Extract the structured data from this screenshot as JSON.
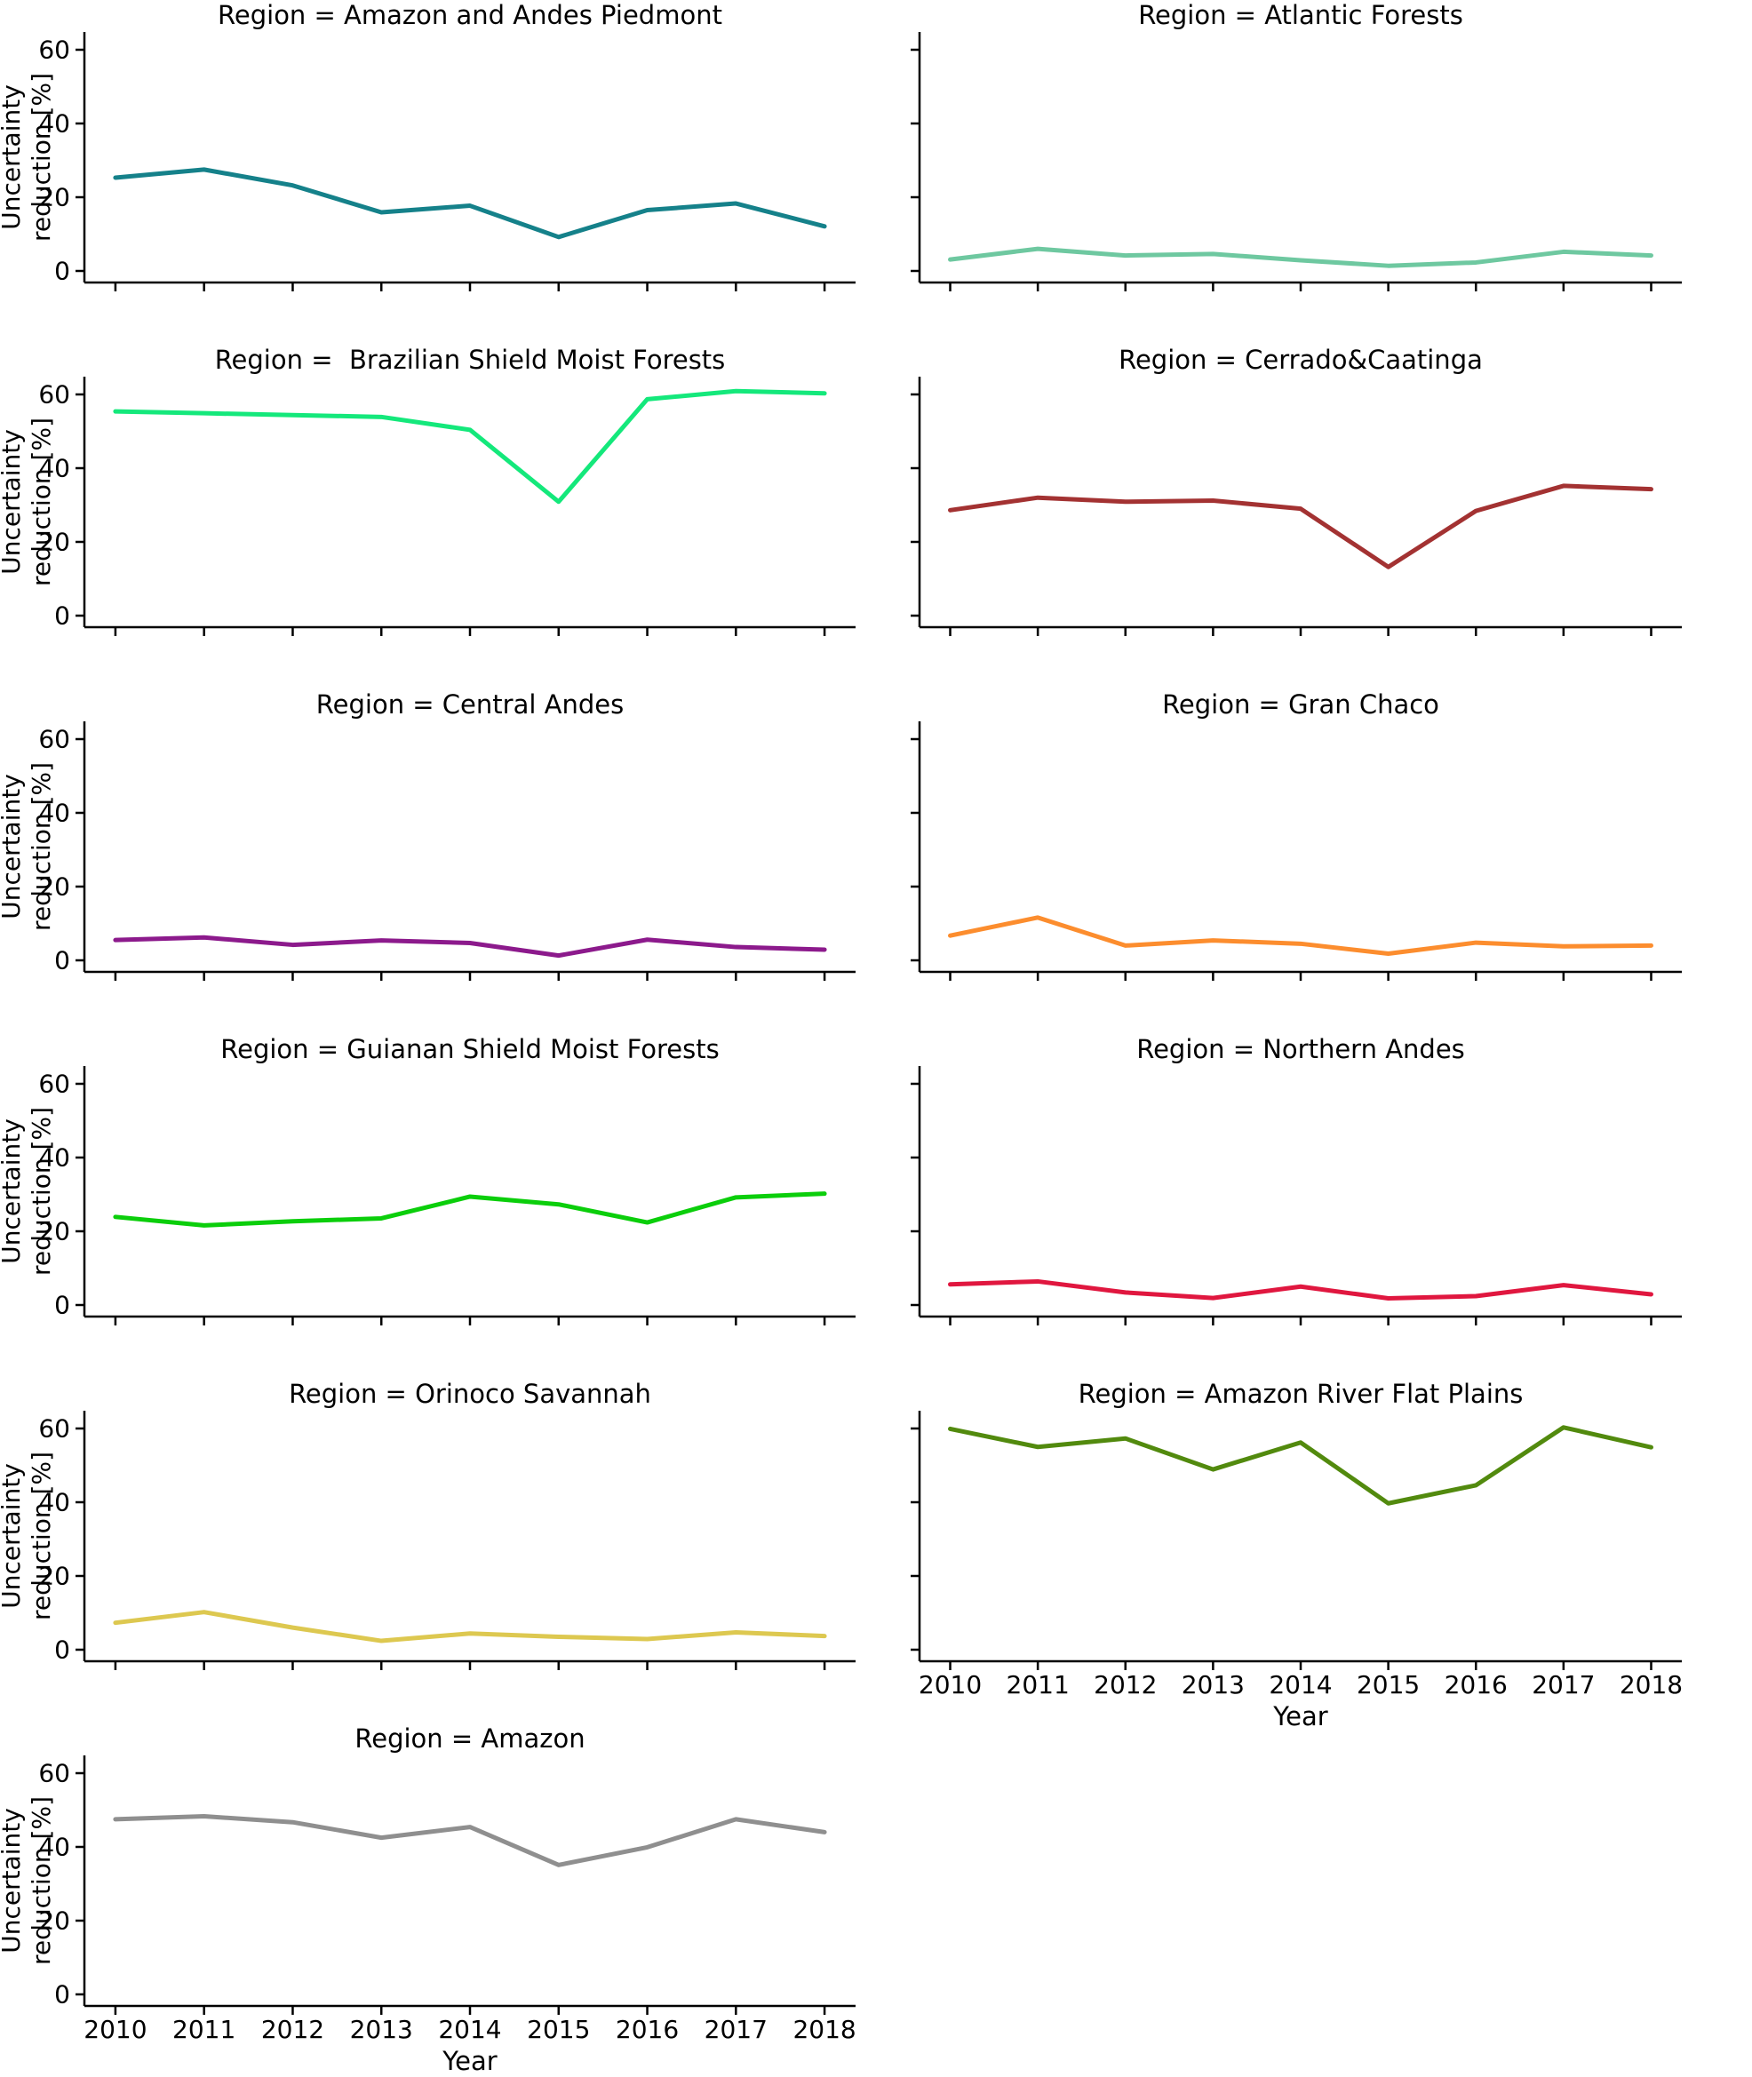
{
  "figure": {
    "xlabel": "Year",
    "ylabel_lines": [
      "Uncertainty",
      "reduction [%]"
    ],
    "yticks": [
      0,
      20,
      40,
      60
    ],
    "xticks": [
      2010,
      2011,
      2012,
      2013,
      2014,
      2015,
      2016,
      2017,
      2018
    ],
    "ylim": [
      -3,
      65
    ],
    "xlim": [
      2009.65,
      2018.35
    ],
    "grid": false,
    "legend": "none",
    "axis_color": "#000000",
    "background": "#ffffff"
  },
  "chart_data": [
    {
      "type": "line",
      "region": "Amazon and Andes Piedmont",
      "title": "Region = Amazon and Andes Piedmont",
      "color": "#15818a",
      "column": "left",
      "x": [
        2010,
        2011,
        2012,
        2013,
        2014,
        2015,
        2016,
        2017,
        2018
      ],
      "values": [
        25.3,
        27.5,
        23.2,
        15.9,
        17.7,
        9.2,
        16.5,
        18.3,
        12.1
      ],
      "show_ytick_labels": true,
      "show_ylabel": true,
      "show_xtick_labels": false,
      "show_xlabel": false
    },
    {
      "type": "line",
      "region": "Atlantic Forests",
      "title": "Region = Atlantic Forests",
      "color": "#6ec8a0",
      "column": "right",
      "x": [
        2010,
        2011,
        2012,
        2013,
        2014,
        2015,
        2016,
        2017,
        2018
      ],
      "values": [
        3.1,
        6.0,
        4.2,
        4.6,
        2.9,
        1.4,
        2.3,
        5.2,
        4.2
      ],
      "show_ytick_labels": false,
      "show_ylabel": false,
      "show_xtick_labels": false,
      "show_xlabel": false
    },
    {
      "type": "line",
      "region": "Brazilian Shield Moist Forests",
      "title": "Region =  Brazilian Shield Moist Forests",
      "color": "#14e87b",
      "column": "left",
      "x": [
        2010,
        2011,
        2012,
        2013,
        2014,
        2015,
        2016,
        2017,
        2018
      ],
      "values": [
        55.4,
        54.9,
        54.4,
        53.9,
        50.4,
        30.9,
        58.7,
        60.9,
        60.3
      ],
      "show_ytick_labels": true,
      "show_ylabel": true,
      "show_xtick_labels": false,
      "show_xlabel": false
    },
    {
      "type": "line",
      "region": "Cerrado&Caatinga",
      "title": "Region = Cerrado&Caatinga",
      "color": "#a33232",
      "column": "right",
      "x": [
        2010,
        2011,
        2012,
        2013,
        2014,
        2015,
        2016,
        2017,
        2018
      ],
      "values": [
        28.6,
        32.0,
        30.9,
        31.2,
        29.0,
        13.2,
        28.4,
        35.2,
        34.3
      ],
      "show_ytick_labels": false,
      "show_ylabel": false,
      "show_xtick_labels": false,
      "show_xlabel": false
    },
    {
      "type": "line",
      "region": "Central Andes",
      "title": "Region = Central Andes",
      "color": "#8c1a8c",
      "column": "left",
      "x": [
        2010,
        2011,
        2012,
        2013,
        2014,
        2015,
        2016,
        2017,
        2018
      ],
      "values": [
        5.5,
        6.2,
        4.2,
        5.4,
        4.7,
        1.3,
        5.6,
        3.6,
        2.9
      ],
      "show_ytick_labels": true,
      "show_ylabel": true,
      "show_xtick_labels": false,
      "show_xlabel": false
    },
    {
      "type": "line",
      "region": "Gran Chaco",
      "title": "Region = Gran Chaco",
      "color": "#fc8d2e",
      "column": "right",
      "x": [
        2010,
        2011,
        2012,
        2013,
        2014,
        2015,
        2016,
        2017,
        2018
      ],
      "values": [
        6.7,
        11.6,
        4.0,
        5.4,
        4.5,
        1.8,
        4.8,
        3.8,
        4.0
      ],
      "show_ytick_labels": false,
      "show_ylabel": false,
      "show_xtick_labels": false,
      "show_xlabel": false
    },
    {
      "type": "line",
      "region": "Guianan Shield Moist Forests",
      "title": "Region = Guianan Shield Moist Forests",
      "color": "#0bce0b",
      "column": "left",
      "x": [
        2010,
        2011,
        2012,
        2013,
        2014,
        2015,
        2016,
        2017,
        2018
      ],
      "values": [
        23.9,
        21.6,
        22.7,
        23.5,
        29.4,
        27.3,
        22.4,
        29.2,
        30.2
      ],
      "show_ytick_labels": true,
      "show_ylabel": true,
      "show_xtick_labels": false,
      "show_xlabel": false
    },
    {
      "type": "line",
      "region": "Northern Andes",
      "title": "Region = Northern Andes",
      "color": "#e0173f",
      "column": "right",
      "x": [
        2010,
        2011,
        2012,
        2013,
        2014,
        2015,
        2016,
        2017,
        2018
      ],
      "values": [
        5.6,
        6.4,
        3.4,
        1.9,
        5.0,
        1.8,
        2.4,
        5.4,
        2.9
      ],
      "show_ytick_labels": false,
      "show_ylabel": false,
      "show_xtick_labels": false,
      "show_xlabel": false
    },
    {
      "type": "line",
      "region": "Orinoco Savannah",
      "title": "Region = Orinoco Savannah",
      "color": "#ddc850",
      "column": "left",
      "x": [
        2010,
        2011,
        2012,
        2013,
        2014,
        2015,
        2016,
        2017,
        2018
      ],
      "values": [
        7.3,
        10.2,
        6.0,
        2.4,
        4.4,
        3.5,
        2.9,
        4.7,
        3.7
      ],
      "show_ytick_labels": true,
      "show_ylabel": true,
      "show_xtick_labels": false,
      "show_xlabel": false
    },
    {
      "type": "line",
      "region": "Amazon River Flat Plains",
      "title": "Region = Amazon River Flat Plains",
      "color": "#528a0e",
      "column": "right",
      "x": [
        2010,
        2011,
        2012,
        2013,
        2014,
        2015,
        2016,
        2017,
        2018
      ],
      "values": [
        59.9,
        55.0,
        57.3,
        48.9,
        56.2,
        39.7,
        44.6,
        60.3,
        54.9
      ],
      "show_ytick_labels": false,
      "show_ylabel": false,
      "show_xtick_labels": true,
      "show_xlabel": true
    },
    {
      "type": "line",
      "region": "Amazon",
      "title": "Region = Amazon",
      "color": "#8f8f8f",
      "column": "left",
      "x": [
        2010,
        2011,
        2012,
        2013,
        2014,
        2015,
        2016,
        2017,
        2018
      ],
      "values": [
        47.5,
        48.3,
        46.7,
        42.5,
        45.4,
        35.1,
        39.9,
        47.5,
        44.0
      ],
      "show_ytick_labels": true,
      "show_ylabel": true,
      "show_xtick_labels": true,
      "show_xlabel": true
    }
  ]
}
